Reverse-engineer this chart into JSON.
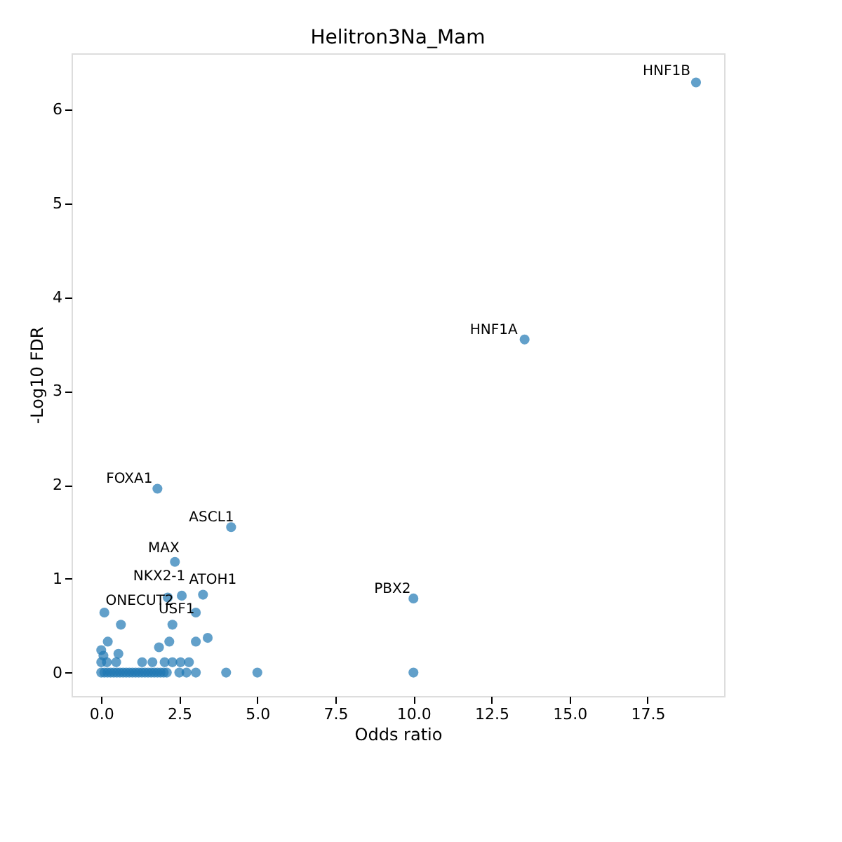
{
  "chart_data": {
    "type": "scatter",
    "title": "Helitron3Na_Mam",
    "xlabel": "Odds ratio",
    "ylabel": "-Log10 FDR",
    "x": [
      19.05,
      13.56,
      10.0,
      1.8,
      4.16,
      2.36,
      2.58,
      3.26,
      2.13,
      2.28,
      0.1,
      3.03,
      0.63,
      3.41,
      3.03,
      2.18,
      1.85,
      0.21,
      0.0,
      0.55,
      0.07,
      0.0,
      0.18,
      0.48,
      1.31,
      1.64,
      2.03,
      2.28,
      2.54,
      2.81,
      0.0,
      0.1,
      0.2,
      0.3,
      0.4,
      0.5,
      0.6,
      0.7,
      0.8,
      0.9,
      1.0,
      1.1,
      1.2,
      1.3,
      1.4,
      1.5,
      1.6,
      1.7,
      1.8,
      1.9,
      2.0,
      2.1,
      2.5,
      2.73,
      3.03,
      4.0,
      5.0,
      10.0
    ],
    "values": [
      6.29,
      3.55,
      0.79,
      1.96,
      1.55,
      1.18,
      0.82,
      0.83,
      0.8,
      0.51,
      0.64,
      0.64,
      0.51,
      0.37,
      0.33,
      0.33,
      0.27,
      0.33,
      0.24,
      0.2,
      0.18,
      0.11,
      0.11,
      0.11,
      0.11,
      0.11,
      0.11,
      0.11,
      0.11,
      0.11,
      0.0,
      0.0,
      0.0,
      0.0,
      0.0,
      0.0,
      0.0,
      0.0,
      0.0,
      0.0,
      0.0,
      0.0,
      0.0,
      0.0,
      0.0,
      0.0,
      0.0,
      0.0,
      0.0,
      0.0,
      0.0,
      0.0,
      0.0,
      0.0,
      0.0,
      0.0,
      0.0,
      0.0
    ],
    "color": "#1f77b4",
    "marker": "circle",
    "xlim": [
      -0.95,
      19.95
    ],
    "ylim": [
      -0.25,
      6.6
    ],
    "xticks": [
      {
        "value": 0,
        "label": "0.0"
      },
      {
        "value": 2.5,
        "label": "2.5"
      },
      {
        "value": 5,
        "label": "5.0"
      },
      {
        "value": 7.5,
        "label": "7.5"
      },
      {
        "value": 10,
        "label": "10.0"
      },
      {
        "value": 12.5,
        "label": "12.5"
      },
      {
        "value": 15,
        "label": "15.0"
      },
      {
        "value": 17.5,
        "label": "17.5"
      }
    ],
    "yticks": [
      0,
      1,
      2,
      3,
      4,
      5,
      6
    ],
    "grid": false,
    "annotations": [
      {
        "text": "HNF1B",
        "x": 19.05,
        "y": 6.29
      },
      {
        "text": "HNF1A",
        "x": 13.56,
        "y": 3.55
      },
      {
        "text": "PBX2",
        "x": 10.0,
        "y": 0.79
      },
      {
        "text": "FOXA1",
        "x": 1.8,
        "y": 1.96
      },
      {
        "text": "ASCL1",
        "x": 4.16,
        "y": 1.55
      },
      {
        "text": "MAX",
        "x": 2.36,
        "y": 1.18
      },
      {
        "text": "NKX2-1",
        "x": 2.58,
        "y": 0.82
      },
      {
        "text": "ATOH1",
        "x": 3.26,
        "y": 0.83
      },
      {
        "text": "ONECUT2",
        "x": 2.13,
        "y": 0.8
      },
      {
        "text": "USF1",
        "x": 2.28,
        "y": 0.51
      }
    ]
  }
}
